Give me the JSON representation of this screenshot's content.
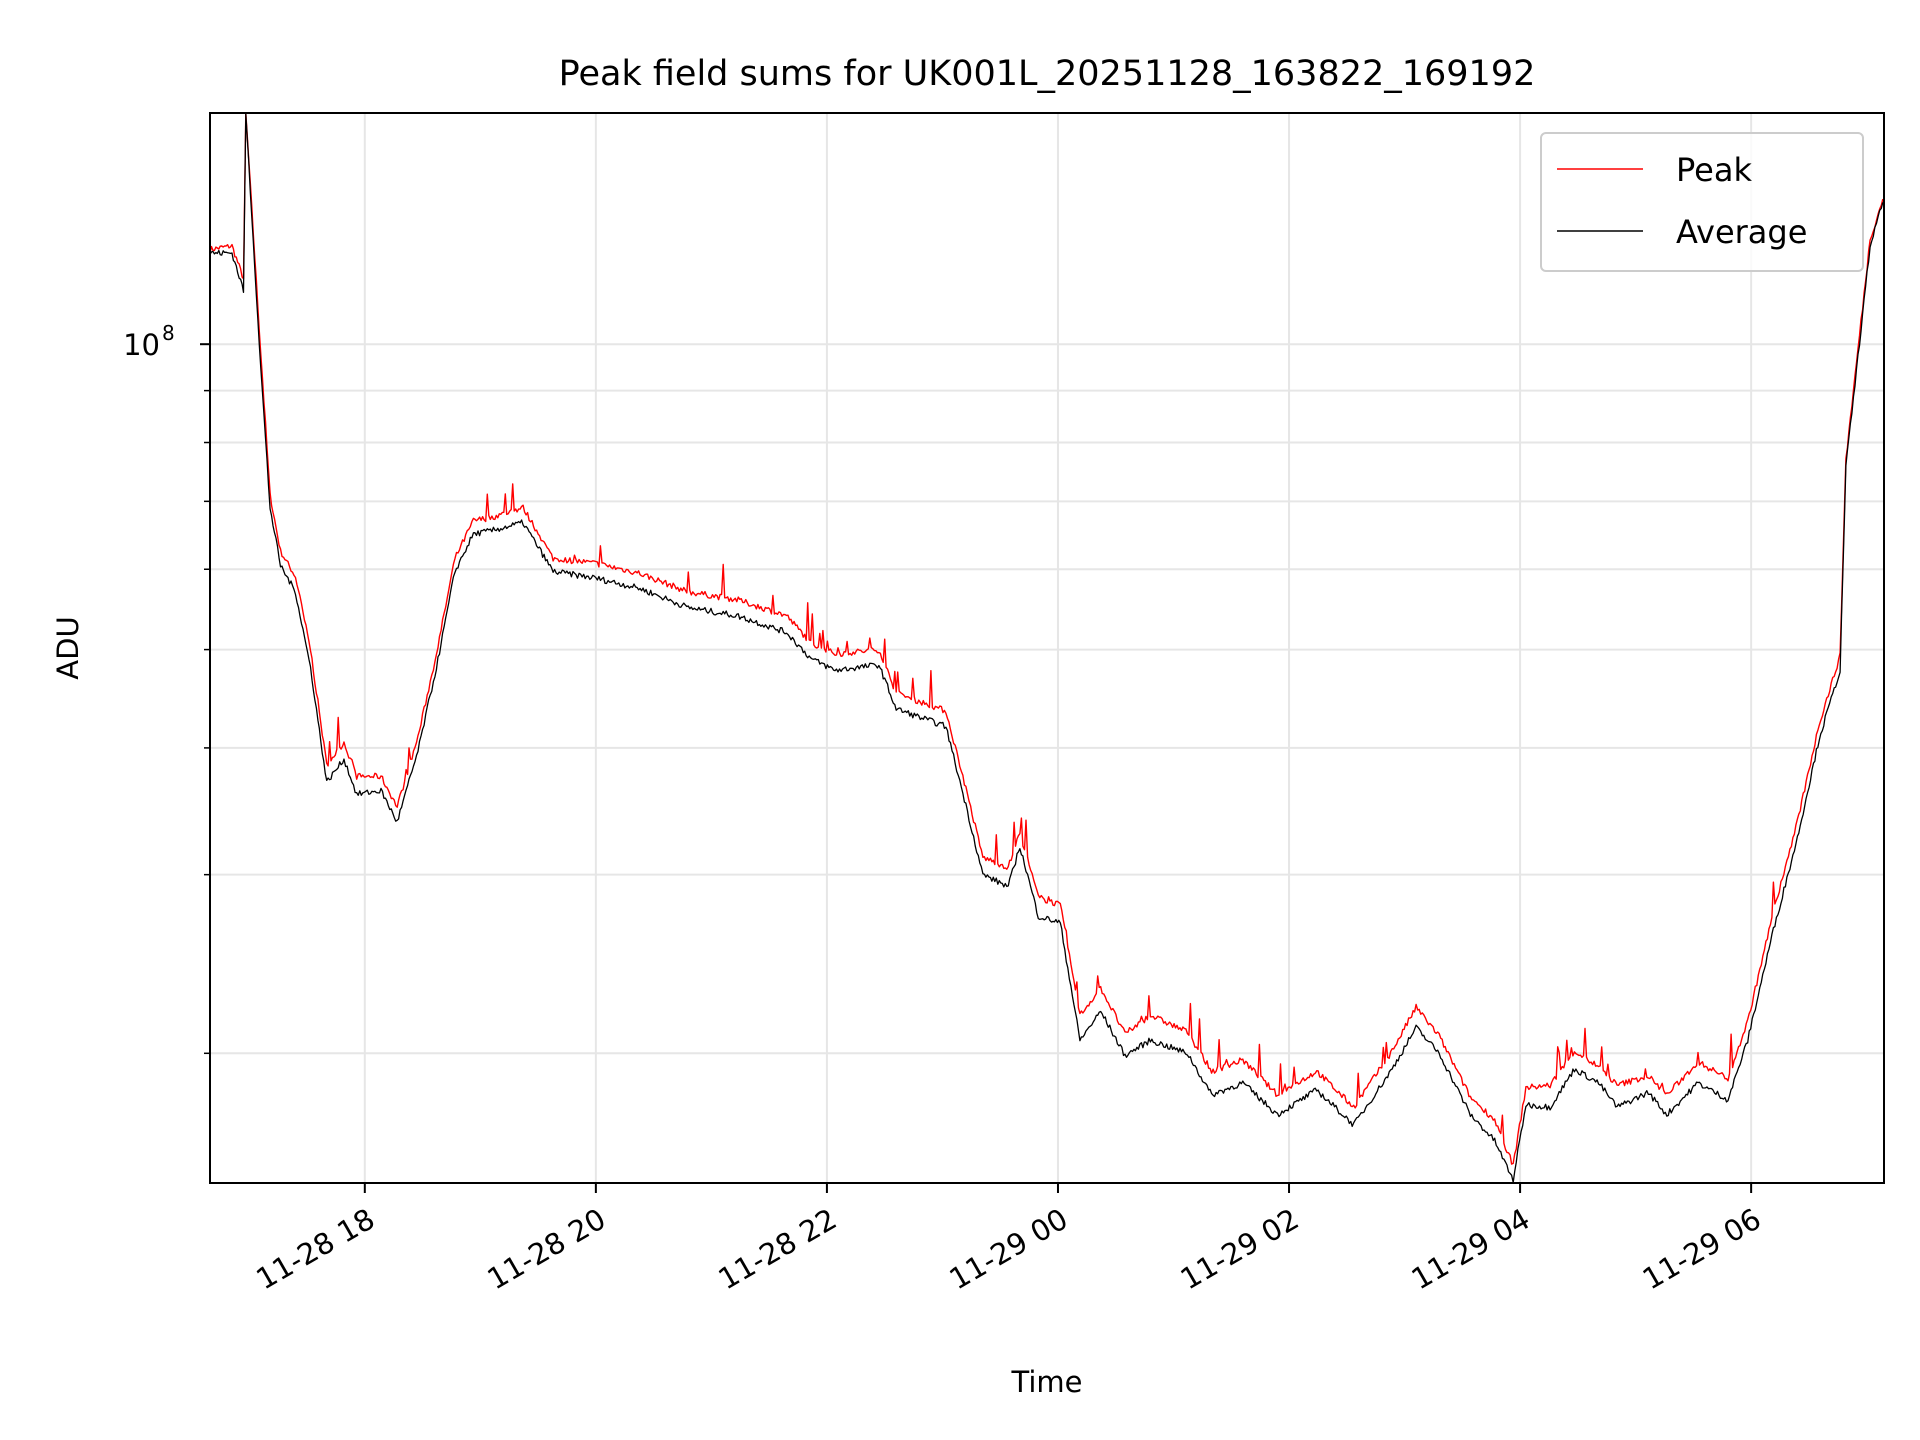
{
  "chart_data": {
    "type": "line",
    "title": "Peak field sums for UK001L_20251128_163822_169192",
    "xlabel": "Time",
    "ylabel": "ADU",
    "yscale": "log",
    "x_units": "hours since 11-28 00:00",
    "xlim": [
      16.66,
      31.15
    ],
    "ylim": [
      14900000,
      169000000
    ],
    "grid": true,
    "legend_position": "top-right",
    "x_ticks": [
      {
        "value": 18,
        "label": "11-28 18"
      },
      {
        "value": 20,
        "label": "11-28 20"
      },
      {
        "value": 22,
        "label": "11-28 22"
      },
      {
        "value": 24,
        "label": "11-29 00"
      },
      {
        "value": 26,
        "label": "11-29 02"
      },
      {
        "value": 28,
        "label": "11-29 04"
      },
      {
        "value": 30,
        "label": "11-29 06"
      }
    ],
    "y_major_ticks": [
      {
        "value": 100000000,
        "base": "10",
        "exp": "8"
      }
    ],
    "y_minor_ticks": [
      20000000,
      30000000,
      40000000,
      50000000,
      60000000,
      70000000,
      80000000,
      90000000
    ],
    "x": [
      16.66,
      16.85,
      16.95,
      16.97,
      17.1,
      17.18,
      17.27,
      17.4,
      17.53,
      17.67,
      17.82,
      17.93,
      18.14,
      18.28,
      18.46,
      18.62,
      18.78,
      18.94,
      19.1,
      19.37,
      19.63,
      20.0,
      20.37,
      20.8,
      21.22,
      21.65,
      21.86,
      22.07,
      22.45,
      22.6,
      23.03,
      23.19,
      23.35,
      23.57,
      23.67,
      23.83,
      24.02,
      24.19,
      24.37,
      24.58,
      24.8,
      25.12,
      25.33,
      25.6,
      25.9,
      26.24,
      26.56,
      26.88,
      27.1,
      27.3,
      27.57,
      27.78,
      27.94,
      28.05,
      28.26,
      28.47,
      28.68,
      28.84,
      29.11,
      29.27,
      29.54,
      29.8,
      29.97,
      30.18,
      30.4,
      30.59,
      30.77,
      30.82,
      31.03,
      31.14
    ],
    "series": [
      {
        "name": "Peak",
        "color": "#ff0000",
        "values": [
          124000000,
          125000000,
          116000000,
          169000000,
          98000000,
          71000000,
          62500000,
          59000000,
          50000000,
          38500000,
          40500000,
          37500000,
          37500000,
          35000000,
          41000000,
          49500000,
          61500000,
          67000000,
          67500000,
          69000000,
          61500000,
          60800000,
          59500000,
          57000000,
          56000000,
          54000000,
          50800000,
          49500000,
          50000000,
          45300000,
          43500000,
          37000000,
          31200000,
          30500000,
          33000000,
          28500000,
          28000000,
          21800000,
          23200000,
          20900000,
          21800000,
          21000000,
          19200000,
          19700000,
          18200000,
          19200000,
          17700000,
          20000000,
          22200000,
          20800000,
          18100000,
          17200000,
          15500000,
          18500000,
          18600000,
          20100000,
          19400000,
          18600000,
          19000000,
          18200000,
          19600000,
          18900000,
          21500000,
          27200000,
          33800000,
          42300000,
          49300000,
          77000000,
          127000000,
          139000000
        ]
      },
      {
        "name": "Average",
        "color": "#000000",
        "values": [
          123000000,
          123000000,
          113000000,
          169000000,
          94600000,
          69000000,
          60500000,
          57000000,
          48000000,
          37000000,
          39000000,
          36000000,
          36300000,
          33800000,
          39700000,
          48000000,
          59700000,
          65000000,
          65500000,
          66700000,
          59700000,
          58800000,
          57500000,
          55000000,
          54000000,
          52000000,
          49000000,
          47700000,
          48300000,
          43700000,
          42000000,
          35600000,
          30000000,
          29200000,
          32000000,
          27300000,
          26900000,
          20600000,
          22000000,
          19900000,
          20600000,
          20000000,
          18200000,
          18700000,
          17400000,
          18400000,
          17000000,
          19200000,
          21200000,
          20000000,
          17400000,
          16400000,
          15000000,
          17800000,
          17700000,
          19300000,
          18700000,
          17700000,
          18300000,
          17400000,
          18700000,
          18000000,
          20600000,
          26100000,
          32600000,
          40900000,
          47700000,
          75600000,
          125000000,
          138000000
        ]
      }
    ]
  }
}
